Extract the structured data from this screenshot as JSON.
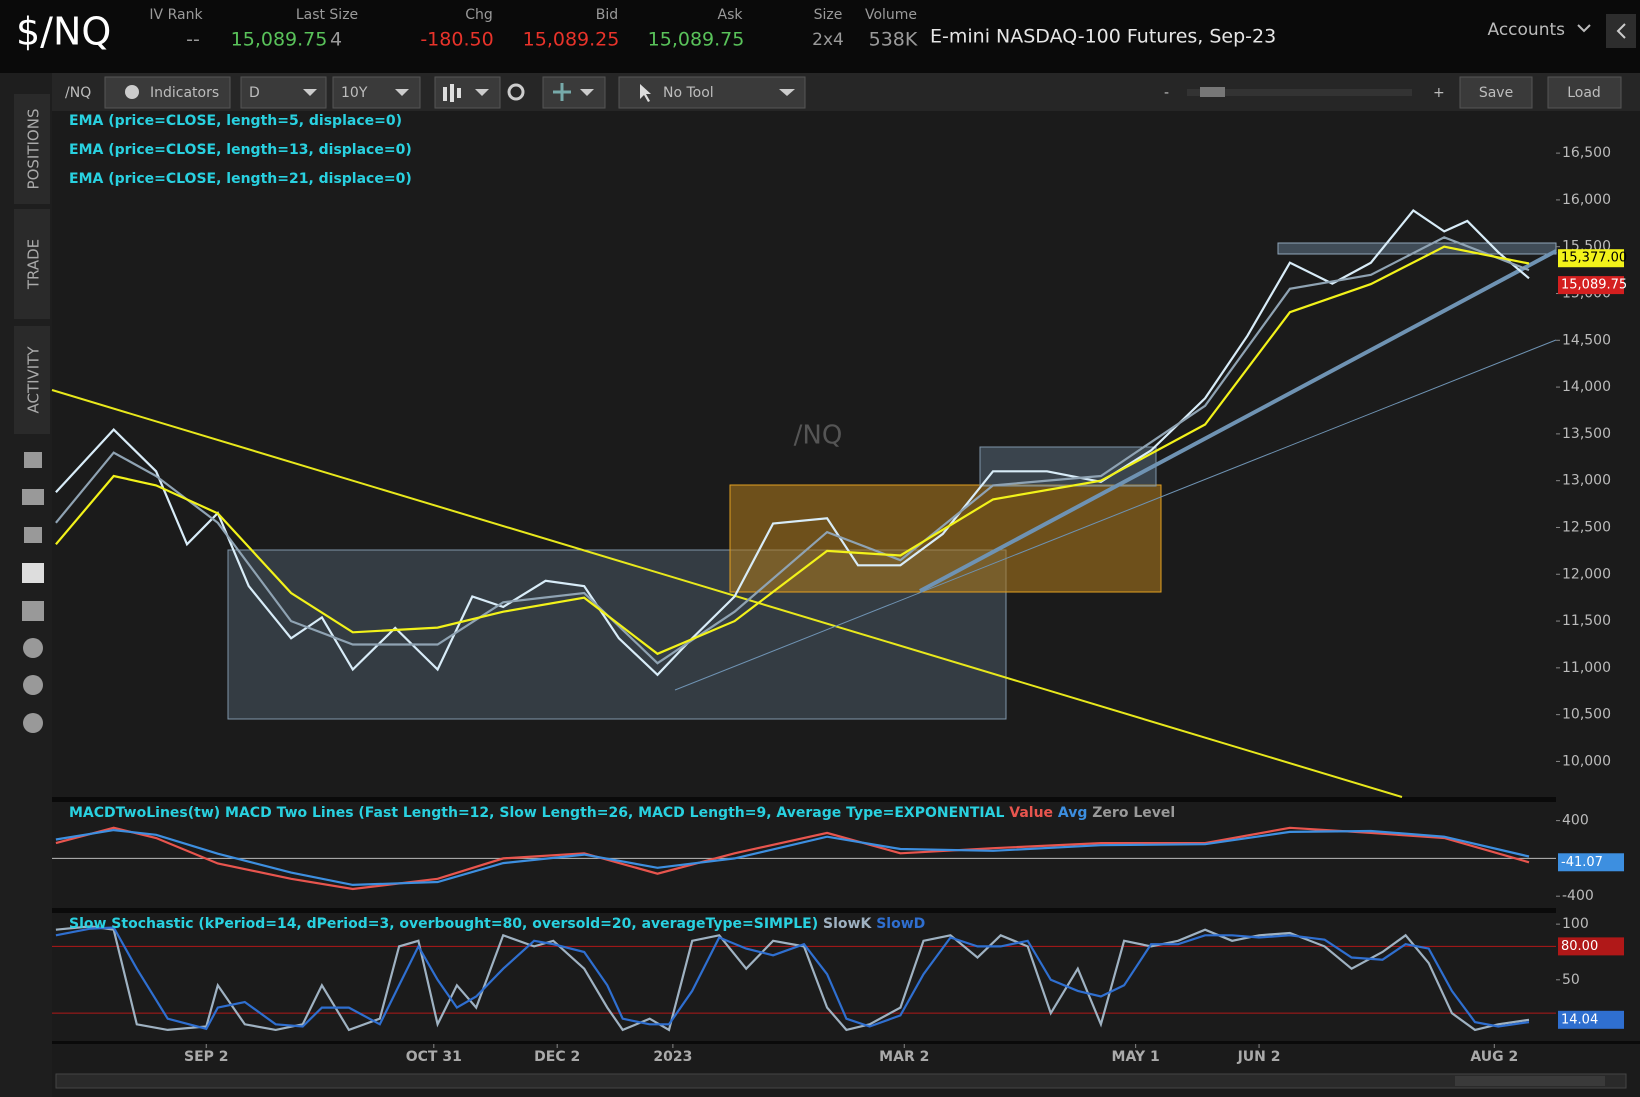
{
  "header": {
    "symbol": "$/NQ",
    "fields": [
      {
        "label": "IV Rank",
        "value": "--"
      },
      {
        "label": "Last Size",
        "value": "15,089.75",
        "extra": "4"
      },
      {
        "label": "Chg",
        "value": "-180.50"
      },
      {
        "label": "Bid",
        "value": "15,089.25"
      },
      {
        "label": "Ask",
        "value": "15,089.75"
      },
      {
        "label": "Size",
        "value": "2x4"
      },
      {
        "label": "Volume",
        "value": "538K"
      }
    ],
    "description": "E-mini NASDAQ-100 Futures, Sep-23",
    "accounts": "Accounts"
  },
  "toolbar": {
    "symbol": "/NQ",
    "indicators": "Indicators",
    "aggregation": "D",
    "period": "10Y",
    "tool": "No Tool",
    "zoom_out": "-",
    "zoom_in": "+",
    "save": "Save",
    "load": "Load"
  },
  "sidebar": {
    "tabs": [
      "POSITIONS",
      "TRADE",
      "ACTIVITY"
    ]
  },
  "chart_data": [
    {
      "type": "line",
      "watermark": "/NQ",
      "xlim": [
        -40,
        350
      ],
      "ylim": [
        9620,
        16950
      ],
      "yticks": [
        {
          "value": 10000,
          "label": "10,000"
        },
        {
          "value": 10500,
          "label": "10,500"
        },
        {
          "value": 11000,
          "label": "11,000"
        },
        {
          "value": 11500,
          "label": "11,500"
        },
        {
          "value": 12000,
          "label": "12,000"
        },
        {
          "value": 12500,
          "label": "12,500"
        },
        {
          "value": 13000,
          "label": "13,000"
        },
        {
          "value": 13500,
          "label": "13,500"
        },
        {
          "value": 14000,
          "label": "14,000"
        },
        {
          "value": 14500,
          "label": "14,500"
        },
        {
          "value": 15000,
          "label": "15,000"
        },
        {
          "value": 15500,
          "label": "15,500"
        },
        {
          "value": 16000,
          "label": "16,000"
        },
        {
          "value": 16500,
          "label": "16,500"
        }
      ],
      "series": [
        {
          "name": "EMA (price=CLOSE, length=5, displace=0)",
          "color": "#d8ecf8",
          "x": [
            -39,
            -24,
            -13,
            -5,
            3,
            11,
            22,
            30,
            38,
            49,
            60,
            69,
            77,
            88,
            98,
            107,
            117,
            126,
            137,
            147,
            161,
            169,
            180,
            191,
            204,
            218,
            232,
            245,
            259,
            270,
            281,
            292,
            302,
            313,
            321,
            327,
            335,
            343
          ],
          "values": [
            12877,
            13546,
            13100,
            12320,
            12654,
            11873,
            11316,
            11539,
            10982,
            11427,
            10982,
            11762,
            11651,
            11930,
            11873,
            11316,
            10926,
            11316,
            11762,
            12542,
            12598,
            12096,
            12096,
            12431,
            13100,
            13100,
            12988,
            13323,
            13880,
            14549,
            15329,
            15106,
            15329,
            15887,
            15664,
            15775,
            15441,
            15162
          ]
        },
        {
          "name": "EMA (price=CLOSE, length=13, displace=0)",
          "color": "#8fa3b3",
          "x": [
            -39,
            -24,
            -13,
            3,
            22,
            38,
            60,
            77,
            98,
            117,
            137,
            161,
            180,
            204,
            232,
            259,
            281,
            302,
            321,
            343
          ],
          "values": [
            12550,
            13300,
            13050,
            12550,
            11500,
            11250,
            11250,
            11700,
            11800,
            11050,
            11600,
            12450,
            12150,
            12950,
            13050,
            13800,
            15050,
            15200,
            15600,
            15250
          ]
        },
        {
          "name": "EMA (price=CLOSE, length=21, displace=0)",
          "color": "#f2f21a",
          "x": [
            -39,
            -24,
            -13,
            3,
            22,
            38,
            60,
            77,
            98,
            117,
            137,
            161,
            180,
            204,
            232,
            259,
            281,
            302,
            321,
            343
          ],
          "values": [
            12320,
            13050,
            12950,
            12650,
            11800,
            11380,
            11430,
            11600,
            11750,
            11150,
            11500,
            12250,
            12200,
            12800,
            13000,
            13600,
            14800,
            15100,
            15500,
            15320
          ]
        }
      ],
      "price_labels": [
        {
          "value": 15377,
          "label": "15,377.00",
          "color": "#f2f21a"
        },
        {
          "value": 15089.75,
          "label": "15,089.75",
          "color": "#d41f1f"
        }
      ]
    },
    {
      "type": "line",
      "title": "MACDTwoLines(tw) MACD Two Lines (Fast Length=12, Slow Length=26, MACD Length=9, Average Type=EXPONENTIAL",
      "zero_label": "Zero Level",
      "xlim": [
        -40,
        350
      ],
      "ylim": [
        -525,
        597
      ],
      "yticks": [
        400,
        -400
      ],
      "zero": 0,
      "series": [
        {
          "name": "Value",
          "color": "#e8554e",
          "x": [
            -39,
            -24,
            -13,
            3,
            22,
            38,
            60,
            77,
            98,
            117,
            137,
            161,
            180,
            204,
            232,
            259,
            281,
            302,
            321,
            343
          ],
          "values": [
            162,
            324,
            216,
            -54,
            -216,
            -324,
            -216,
            0,
            54,
            -162,
            54,
            270,
            54,
            108,
            162,
            162,
            324,
            270,
            216,
            -41.07
          ]
        },
        {
          "name": "Avg",
          "color": "#3d8fe0",
          "x": [
            -39,
            -24,
            -13,
            3,
            22,
            38,
            60,
            77,
            98,
            117,
            137,
            161,
            180,
            204,
            232,
            259,
            281,
            302,
            321,
            343
          ],
          "values": [
            200,
            300,
            250,
            50,
            -150,
            -280,
            -250,
            -50,
            40,
            -100,
            0,
            230,
            100,
            80,
            140,
            150,
            280,
            290,
            230,
            20
          ]
        }
      ],
      "last_label": {
        "value": -41.07,
        "label": "-41.07"
      }
    },
    {
      "type": "line",
      "title": "Slow Stochastic (kPeriod=14, dPeriod=3, overbought=80, oversold=20, averageType=SIMPLE)",
      "xlim": [
        -40,
        350
      ],
      "ylim": [
        -5,
        110
      ],
      "yticks": [
        100,
        50
      ],
      "overbought": {
        "value": 80,
        "label": "80.00"
      },
      "oversold": 20,
      "xticks": [
        {
          "value": 0,
          "label": "SEP 2"
        },
        {
          "value": 59,
          "label": "OCT 31"
        },
        {
          "value": 91,
          "label": "DEC 2"
        },
        {
          "value": 121,
          "label": "2023"
        },
        {
          "value": 181,
          "label": "MAR 2"
        },
        {
          "value": 241,
          "label": "MAY 1"
        },
        {
          "value": 273,
          "label": "JUN 2"
        },
        {
          "value": 334,
          "label": "AUG 2"
        }
      ],
      "series": [
        {
          "name": "SlowK",
          "color": "#9fb2c2",
          "x": [
            -39,
            -30,
            -24,
            -18,
            -10,
            0,
            3,
            10,
            18,
            25,
            30,
            37,
            45,
            50,
            55,
            60,
            65,
            70,
            77,
            85,
            90,
            98,
            104,
            108,
            115,
            120,
            126,
            133,
            140,
            147,
            155,
            161,
            166,
            172,
            180,
            186,
            193,
            200,
            206,
            213,
            219,
            226,
            232,
            238,
            245,
            252,
            259,
            266,
            273,
            281,
            290,
            297,
            305,
            311,
            317,
            323,
            329,
            335,
            343
          ],
          "values": [
            95,
            98,
            95,
            10,
            5,
            8,
            45,
            10,
            5,
            10,
            45,
            5,
            15,
            80,
            85,
            10,
            45,
            25,
            90,
            80,
            85,
            60,
            25,
            5,
            15,
            5,
            85,
            90,
            60,
            85,
            80,
            25,
            5,
            10,
            25,
            85,
            90,
            70,
            90,
            80,
            20,
            60,
            10,
            85,
            80,
            85,
            95,
            85,
            90,
            92,
            80,
            60,
            75,
            90,
            65,
            20,
            5,
            10,
            14.04
          ]
        },
        {
          "name": "SlowD",
          "color": "#2f6fd0",
          "x": [
            -39,
            -30,
            -24,
            -18,
            -10,
            0,
            3,
            10,
            18,
            25,
            30,
            37,
            45,
            50,
            55,
            60,
            65,
            70,
            77,
            85,
            90,
            98,
            104,
            108,
            115,
            120,
            126,
            133,
            140,
            147,
            155,
            161,
            166,
            172,
            180,
            186,
            193,
            200,
            206,
            213,
            219,
            226,
            232,
            238,
            245,
            252,
            259,
            266,
            273,
            281,
            290,
            297,
            305,
            311,
            317,
            323,
            329,
            335,
            343
          ],
          "values": [
            90,
            96,
            97,
            60,
            15,
            6,
            25,
            30,
            10,
            8,
            25,
            25,
            10,
            45,
            80,
            50,
            25,
            35,
            60,
            85,
            82,
            75,
            45,
            15,
            10,
            10,
            40,
            88,
            78,
            72,
            82,
            55,
            15,
            8,
            18,
            55,
            88,
            80,
            80,
            85,
            50,
            40,
            35,
            45,
            82,
            82,
            90,
            90,
            88,
            90,
            86,
            70,
            68,
            82,
            78,
            40,
            12,
            8,
            12
          ]
        }
      ],
      "last_label": {
        "value": 14.04,
        "label": "14.04"
      }
    }
  ]
}
